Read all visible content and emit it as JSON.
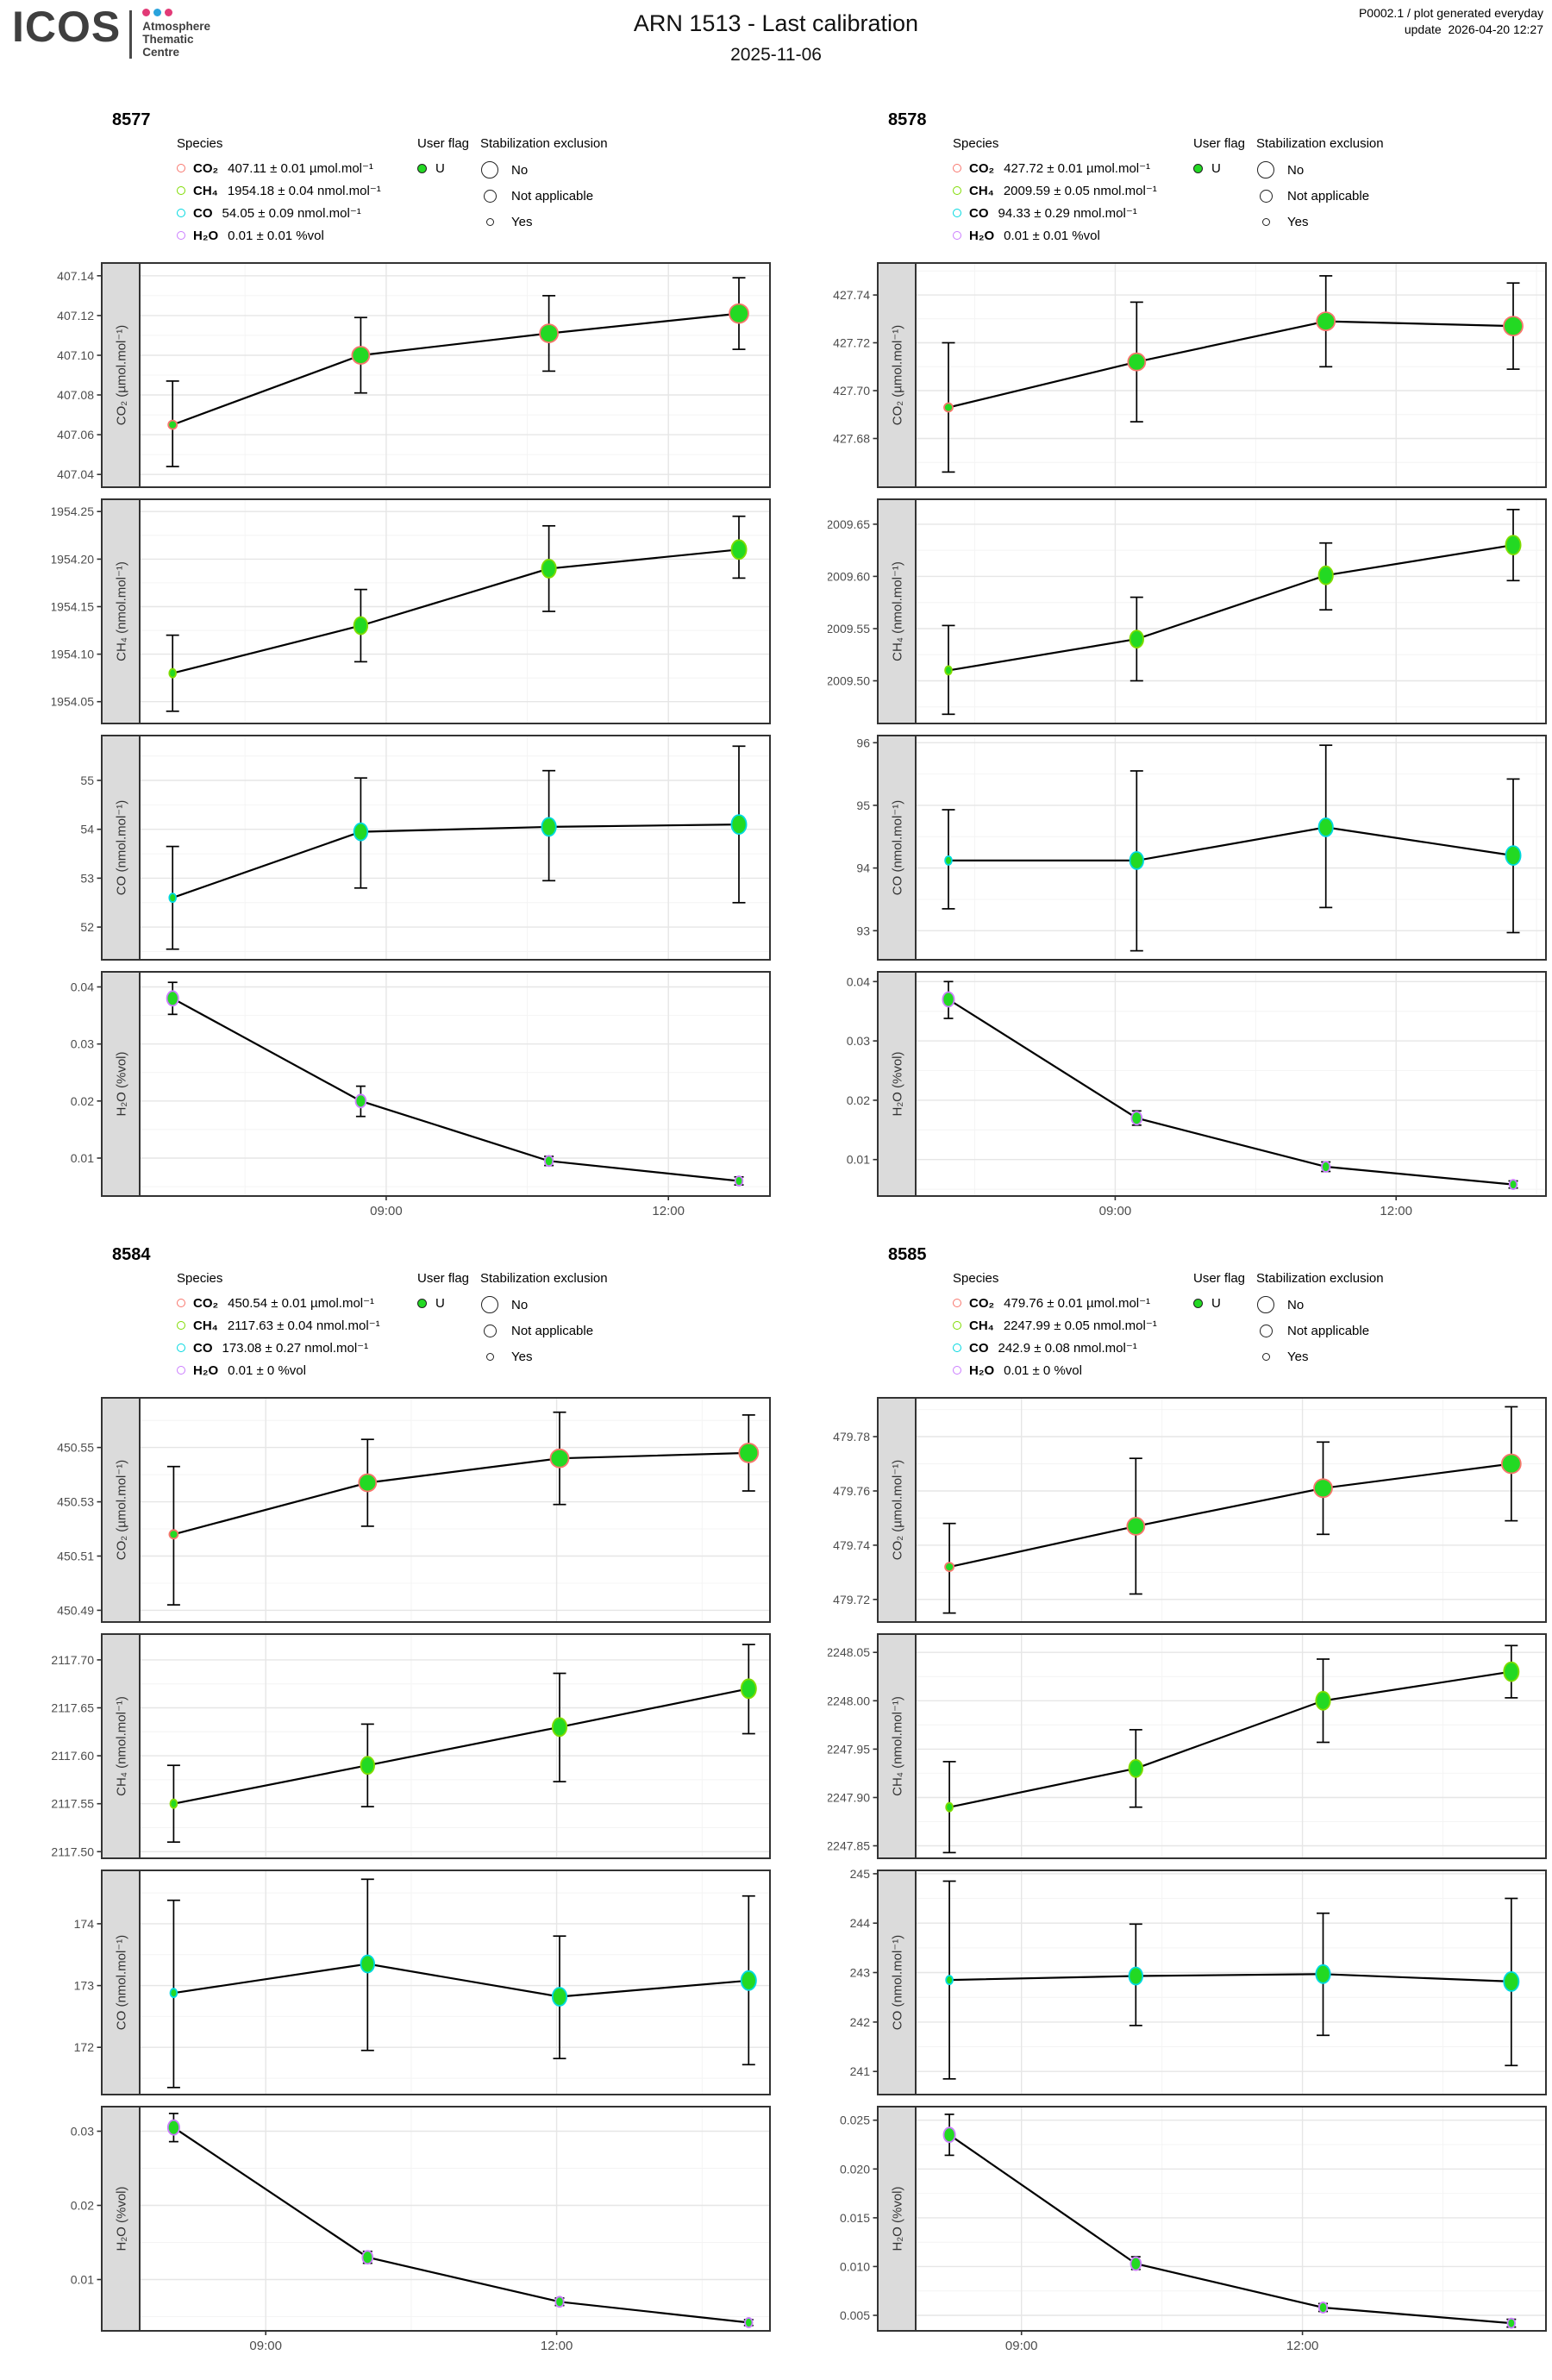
{
  "header": {
    "logo_text": "ICOS",
    "org_lines": [
      "Atmosphere",
      "Thematic",
      "Centre"
    ],
    "title": "ARN 1513 - Last calibration",
    "subtitle": "2025-11-06",
    "meta_line1": "P0002.1 / plot generated everyday",
    "meta_line2": "update  2026-04-20 12:27"
  },
  "legend": {
    "species_header": "Species",
    "user_flag_header": "User flag",
    "user_flag_label": "U",
    "stab_header": "Stabilization exclusion",
    "stab_items": [
      "No",
      "Not applicable",
      "Yes"
    ]
  },
  "species_colors": {
    "co2": "#F8766D",
    "ch4": "#7FDC00",
    "co": "#00D8E0",
    "h2o": "#CB7DFF"
  },
  "colors": {
    "marker_fill": "#23D923",
    "user_flag_dot": "#23D923",
    "strip_bg": "#DBDBDB",
    "panel_border": "#333333",
    "grid_major": "#E6E6E6",
    "grid_minor": "#F4F4F4",
    "tick_text": "#4D4D4D",
    "logo_dot_pink": "#E23A77",
    "logo_dot_blue": "#29A3DC"
  },
  "panels": [
    {
      "id": "8577",
      "species_items": [
        {
          "key": "co2",
          "formula": "CO₂",
          "value_text": "407.11 ± 0.01 µmol.mol⁻¹"
        },
        {
          "key": "ch4",
          "formula": "CH₄",
          "value_text": "1954.18 ± 0.04 nmol.mol⁻¹"
        },
        {
          "key": "co",
          "formula": "CO",
          "value_text": "54.05 ± 0.09 nmol.mol⁻¹"
        },
        {
          "key": "h2o",
          "formula": "H₂O",
          "value_text": "0.01 ± 0.01 %vol"
        }
      ]
    },
    {
      "id": "8578",
      "species_items": [
        {
          "key": "co2",
          "formula": "CO₂",
          "value_text": "427.72 ± 0.01 µmol.mol⁻¹"
        },
        {
          "key": "ch4",
          "formula": "CH₄",
          "value_text": "2009.59 ± 0.05 nmol.mol⁻¹"
        },
        {
          "key": "co",
          "formula": "CO",
          "value_text": "94.33 ± 0.29 nmol.mol⁻¹"
        },
        {
          "key": "h2o",
          "formula": "H₂O",
          "value_text": "0.01 ± 0.01 %vol"
        }
      ]
    },
    {
      "id": "8584",
      "species_items": [
        {
          "key": "co2",
          "formula": "CO₂",
          "value_text": "450.54 ± 0.01 µmol.mol⁻¹"
        },
        {
          "key": "ch4",
          "formula": "CH₄",
          "value_text": "2117.63 ± 0.04 nmol.mol⁻¹"
        },
        {
          "key": "co",
          "formula": "CO",
          "value_text": "173.08 ± 0.27 nmol.mol⁻¹"
        },
        {
          "key": "h2o",
          "formula": "H₂O",
          "value_text": "0.01 ± 0 %vol"
        }
      ]
    },
    {
      "id": "8585",
      "species_items": [
        {
          "key": "co2",
          "formula": "CO₂",
          "value_text": "479.76 ± 0.01 µmol.mol⁻¹"
        },
        {
          "key": "ch4",
          "formula": "CH₄",
          "value_text": "2247.99 ± 0.05 nmol.mol⁻¹"
        },
        {
          "key": "co",
          "formula": "CO",
          "value_text": "242.9 ± 0.08 nmol.mol⁻¹"
        },
        {
          "key": "h2o",
          "formula": "H₂O",
          "value_text": "0.01 ± 0 %vol"
        }
      ]
    }
  ],
  "chart_data": [
    {
      "type": "line",
      "panel": "8577",
      "key": "co2",
      "ylabel": "CO₂ (µmol.mol⁻¹)",
      "xlim": [
        6.38,
        13.08
      ],
      "x": [
        6.73,
        8.73,
        10.73,
        12.75
      ],
      "y": [
        407.065,
        407.1,
        407.111,
        407.121
      ],
      "err_lo": [
        407.044,
        407.081,
        407.092,
        407.103
      ],
      "err_hi": [
        407.087,
        407.119,
        407.13,
        407.139
      ],
      "ylim": [
        407.034,
        407.146
      ],
      "yticks": [
        407.04,
        407.06,
        407.08,
        407.1,
        407.12,
        407.14
      ],
      "ytick_labels": [
        "407.04",
        "407.06",
        "407.08",
        "407.10",
        "407.12",
        "407.14"
      ],
      "sizes": [
        10,
        20,
        21,
        22
      ],
      "ellipse": false,
      "xticks": [
        9,
        12
      ],
      "xtick_labels": [
        "09:00",
        "12:00"
      ],
      "x_minor": [
        7.5,
        10.5,
        13.5
      ]
    },
    {
      "type": "line",
      "panel": "8577",
      "key": "ch4",
      "ylabel": "CH₄ (nmol.mol⁻¹)",
      "xlim": [
        6.38,
        13.08
      ],
      "x": [
        6.73,
        8.73,
        10.73,
        12.75
      ],
      "y": [
        1954.08,
        1954.13,
        1954.19,
        1954.21
      ],
      "err_lo": [
        1954.04,
        1954.092,
        1954.145,
        1954.18
      ],
      "err_hi": [
        1954.12,
        1954.168,
        1954.235,
        1954.245
      ],
      "ylim": [
        1954.028,
        1954.262
      ],
      "yticks": [
        1954.05,
        1954.1,
        1954.15,
        1954.2,
        1954.25
      ],
      "ytick_labels": [
        "1954.05",
        "1954.10",
        "1954.15",
        "1954.20",
        "1954.25"
      ],
      "sizes": [
        10,
        20,
        21,
        22
      ],
      "ellipse": true,
      "xticks": [
        9,
        12
      ],
      "xtick_labels": [
        "09:00",
        "12:00"
      ],
      "x_minor": [
        7.5,
        10.5,
        13.5
      ]
    },
    {
      "type": "line",
      "panel": "8577",
      "key": "co",
      "ylabel": "CO (nmol.mol⁻¹)",
      "xlim": [
        6.38,
        13.08
      ],
      "x": [
        6.73,
        8.73,
        10.73,
        12.75
      ],
      "y": [
        52.6,
        53.95,
        54.05,
        54.1
      ],
      "err_lo": [
        51.55,
        52.8,
        52.95,
        52.5
      ],
      "err_hi": [
        53.65,
        55.05,
        55.2,
        55.7
      ],
      "ylim": [
        51.35,
        55.9
      ],
      "yticks": [
        52,
        53,
        54,
        55
      ],
      "ytick_labels": [
        "52",
        "53",
        "54",
        "55"
      ],
      "sizes": [
        10,
        20,
        21,
        22
      ],
      "ellipse": true,
      "xticks": [
        9,
        12
      ],
      "xtick_labels": [
        "09:00",
        "12:00"
      ],
      "x_minor": [
        7.5,
        10.5,
        13.5
      ]
    },
    {
      "type": "line",
      "panel": "8577",
      "key": "h2o",
      "ylabel": "H₂O (%vol)",
      "xlim": [
        6.38,
        13.08
      ],
      "x": [
        6.73,
        8.73,
        10.73,
        12.75
      ],
      "y": [
        0.038,
        0.02,
        0.0095,
        0.006
      ],
      "err_lo": [
        0.0352,
        0.0173,
        0.0087,
        0.0053
      ],
      "err_hi": [
        0.0408,
        0.0226,
        0.0103,
        0.0067
      ],
      "ylim": [
        0.0035,
        0.0425
      ],
      "yticks": [
        0.01,
        0.02,
        0.03,
        0.04
      ],
      "ytick_labels": [
        "0.01",
        "0.02",
        "0.03",
        "0.04"
      ],
      "sizes": [
        17,
        15,
        12,
        11
      ],
      "ellipse": true,
      "xticks": [
        9,
        12
      ],
      "xtick_labels": [
        "09:00",
        "12:00"
      ],
      "x_minor": [
        7.5,
        10.5,
        13.5
      ]
    },
    {
      "type": "line",
      "panel": "8578",
      "key": "co2",
      "ylabel": "CO₂ (µmol.mol⁻¹)",
      "xlim": [
        6.87,
        13.6
      ],
      "x": [
        7.22,
        9.23,
        11.25,
        13.25
      ],
      "y": [
        427.693,
        427.712,
        427.729,
        427.727
      ],
      "err_lo": [
        427.666,
        427.687,
        427.71,
        427.709
      ],
      "err_hi": [
        427.72,
        427.737,
        427.748,
        427.745
      ],
      "ylim": [
        427.66,
        427.753
      ],
      "yticks": [
        427.68,
        427.7,
        427.72,
        427.74
      ],
      "ytick_labels": [
        "427.68",
        "427.70",
        "427.72",
        "427.74"
      ],
      "sizes": [
        10,
        20,
        21,
        22
      ],
      "ellipse": false,
      "xticks": [
        9,
        12
      ],
      "xtick_labels": [
        "09:00",
        "12:00"
      ],
      "x_minor": [
        7.5,
        10.5,
        13.5
      ]
    },
    {
      "type": "line",
      "panel": "8578",
      "key": "ch4",
      "ylabel": "CH₄ (nmol.mol⁻¹)",
      "xlim": [
        6.87,
        13.6
      ],
      "x": [
        7.22,
        9.23,
        11.25,
        13.25
      ],
      "y": [
        2009.51,
        2009.54,
        2009.601,
        2009.63
      ],
      "err_lo": [
        2009.468,
        2009.5,
        2009.568,
        2009.596
      ],
      "err_hi": [
        2009.553,
        2009.58,
        2009.632,
        2009.664
      ],
      "ylim": [
        2009.46,
        2009.673
      ],
      "yticks": [
        2009.5,
        2009.55,
        2009.6,
        2009.65
      ],
      "ytick_labels": [
        "2009.50",
        "2009.55",
        "2009.60",
        "2009.65"
      ],
      "sizes": [
        10,
        20,
        21,
        22
      ],
      "ellipse": true,
      "xticks": [
        9,
        12
      ],
      "xtick_labels": [
        "09:00",
        "12:00"
      ],
      "x_minor": [
        7.5,
        10.5,
        13.5
      ]
    },
    {
      "type": "line",
      "panel": "8578",
      "key": "co",
      "ylabel": "CO (nmol.mol⁻¹)",
      "xlim": [
        6.87,
        13.6
      ],
      "x": [
        7.22,
        9.23,
        11.25,
        13.25
      ],
      "y": [
        94.12,
        94.12,
        94.65,
        94.2
      ],
      "err_lo": [
        93.35,
        92.68,
        93.37,
        92.97
      ],
      "err_hi": [
        94.93,
        95.55,
        95.96,
        95.42
      ],
      "ylim": [
        92.55,
        96.1
      ],
      "yticks": [
        93,
        94,
        95,
        96
      ],
      "ytick_labels": [
        "93",
        "94",
        "95",
        "96"
      ],
      "sizes": [
        10,
        20,
        21,
        22
      ],
      "ellipse": true,
      "xticks": [
        9,
        12
      ],
      "xtick_labels": [
        "09:00",
        "12:00"
      ],
      "x_minor": [
        7.5,
        10.5,
        13.5
      ]
    },
    {
      "type": "line",
      "panel": "8578",
      "key": "h2o",
      "ylabel": "H₂O (%vol)",
      "xlim": [
        6.87,
        13.6
      ],
      "x": [
        7.22,
        9.23,
        11.25,
        13.25
      ],
      "y": [
        0.037,
        0.017,
        0.0088,
        0.0058
      ],
      "err_lo": [
        0.0338,
        0.0158,
        0.008,
        0.0052
      ],
      "err_hi": [
        0.04,
        0.0182,
        0.0096,
        0.0064
      ],
      "ylim": [
        0.004,
        0.0415
      ],
      "yticks": [
        0.01,
        0.02,
        0.03,
        0.04
      ],
      "ytick_labels": [
        "0.01",
        "0.02",
        "0.03",
        "0.04"
      ],
      "sizes": [
        17,
        15,
        12,
        11
      ],
      "ellipse": true,
      "xticks": [
        9,
        12
      ],
      "xtick_labels": [
        "09:00",
        "12:00"
      ],
      "x_minor": [
        7.5,
        10.5,
        13.5
      ]
    },
    {
      "type": "line",
      "panel": "8584",
      "key": "co2",
      "ylabel": "CO₂ (µmol.mol⁻¹)",
      "xlim": [
        7.7,
        14.2
      ],
      "x": [
        8.05,
        10.05,
        12.03,
        13.98
      ],
      "y": [
        450.518,
        450.537,
        450.546,
        450.548
      ],
      "err_lo": [
        450.492,
        450.521,
        450.529,
        450.534
      ],
      "err_hi": [
        450.543,
        450.553,
        450.563,
        450.562
      ],
      "ylim": [
        450.486,
        450.568
      ],
      "yticks": [
        450.49,
        450.51,
        450.53,
        450.55
      ],
      "ytick_labels": [
        "450.49",
        "450.51",
        "450.53",
        "450.55"
      ],
      "sizes": [
        10,
        20,
        21,
        22
      ],
      "ellipse": false,
      "xticks": [
        9,
        12
      ],
      "xtick_labels": [
        "09:00",
        "12:00"
      ],
      "x_minor": [
        7.5,
        10.5,
        13.5
      ]
    },
    {
      "type": "line",
      "panel": "8584",
      "key": "ch4",
      "ylabel": "CH₄ (nmol.mol⁻¹)",
      "xlim": [
        7.7,
        14.2
      ],
      "x": [
        8.05,
        10.05,
        12.03,
        13.98
      ],
      "y": [
        2117.55,
        2117.59,
        2117.63,
        2117.67
      ],
      "err_lo": [
        2117.51,
        2117.547,
        2117.573,
        2117.623
      ],
      "err_hi": [
        2117.59,
        2117.633,
        2117.686,
        2117.716
      ],
      "ylim": [
        2117.494,
        2117.726
      ],
      "yticks": [
        2117.5,
        2117.55,
        2117.6,
        2117.65,
        2117.7
      ],
      "ytick_labels": [
        "2117.50",
        "2117.55",
        "2117.60",
        "2117.65",
        "2117.70"
      ],
      "sizes": [
        10,
        20,
        21,
        22
      ],
      "ellipse": true,
      "xticks": [
        9,
        12
      ],
      "xtick_labels": [
        "09:00",
        "12:00"
      ],
      "x_minor": [
        7.5,
        10.5,
        13.5
      ]
    },
    {
      "type": "line",
      "panel": "8584",
      "key": "co",
      "ylabel": "CO (nmol.mol⁻¹)",
      "xlim": [
        7.7,
        14.2
      ],
      "x": [
        8.05,
        10.05,
        12.03,
        13.98
      ],
      "y": [
        172.88,
        173.35,
        172.82,
        173.08
      ],
      "err_lo": [
        171.35,
        171.95,
        171.82,
        171.72
      ],
      "err_hi": [
        174.38,
        174.72,
        173.8,
        174.45
      ],
      "ylim": [
        171.25,
        174.85
      ],
      "yticks": [
        172,
        173,
        174
      ],
      "ytick_labels": [
        "172",
        "173",
        "174"
      ],
      "sizes": [
        10,
        20,
        21,
        22
      ],
      "ellipse": true,
      "xticks": [
        9,
        12
      ],
      "xtick_labels": [
        "09:00",
        "12:00"
      ],
      "x_minor": [
        7.5,
        10.5,
        13.5
      ]
    },
    {
      "type": "line",
      "panel": "8584",
      "key": "h2o",
      "ylabel": "H₂O (%vol)",
      "xlim": [
        7.7,
        14.2
      ],
      "x": [
        8.05,
        10.05,
        12.03,
        13.98
      ],
      "y": [
        0.0305,
        0.013,
        0.007,
        0.0042
      ],
      "err_lo": [
        0.0286,
        0.0122,
        0.0065,
        0.0038
      ],
      "err_hi": [
        0.0324,
        0.0138,
        0.0075,
        0.0046
      ],
      "ylim": [
        0.0032,
        0.0332
      ],
      "yticks": [
        0.01,
        0.02,
        0.03
      ],
      "ytick_labels": [
        "0.01",
        "0.02",
        "0.03"
      ],
      "sizes": [
        17,
        15,
        12,
        11
      ],
      "ellipse": true,
      "xticks": [
        9,
        12
      ],
      "xtick_labels": [
        "09:00",
        "12:00"
      ],
      "x_minor": [
        7.5,
        10.5,
        13.5
      ]
    },
    {
      "type": "line",
      "panel": "8585",
      "key": "co2",
      "ylabel": "CO₂ (µmol.mol⁻¹)",
      "xlim": [
        7.87,
        14.6
      ],
      "x": [
        8.23,
        10.22,
        12.22,
        14.23
      ],
      "y": [
        479.732,
        479.747,
        479.761,
        479.77
      ],
      "err_lo": [
        479.715,
        479.722,
        479.744,
        479.749
      ],
      "err_hi": [
        479.748,
        479.772,
        479.778,
        479.791
      ],
      "ylim": [
        479.712,
        479.794
      ],
      "yticks": [
        479.72,
        479.74,
        479.76,
        479.78
      ],
      "ytick_labels": [
        "479.72",
        "479.74",
        "479.76",
        "479.78"
      ],
      "sizes": [
        10,
        20,
        21,
        22
      ],
      "ellipse": false,
      "xticks": [
        9,
        12
      ],
      "xtick_labels": [
        "09:00",
        "12:00"
      ],
      "x_minor": [
        7.5,
        10.5,
        13.5
      ]
    },
    {
      "type": "line",
      "panel": "8585",
      "key": "ch4",
      "ylabel": "CH₄ (nmol.mol⁻¹)",
      "xlim": [
        7.87,
        14.6
      ],
      "x": [
        8.23,
        10.22,
        12.22,
        14.23
      ],
      "y": [
        2247.89,
        2247.93,
        2248.0,
        2248.03
      ],
      "err_lo": [
        2247.843,
        2247.89,
        2247.957,
        2248.003
      ],
      "err_hi": [
        2247.937,
        2247.97,
        2248.043,
        2248.057
      ],
      "ylim": [
        2247.838,
        2248.068
      ],
      "yticks": [
        2247.85,
        2247.9,
        2247.95,
        2248.0,
        2248.05
      ],
      "ytick_labels": [
        "2247.85",
        "2247.90",
        "2247.95",
        "2248.00",
        "2248.05"
      ],
      "sizes": [
        10,
        20,
        21,
        22
      ],
      "ellipse": true,
      "xticks": [
        9,
        12
      ],
      "xtick_labels": [
        "09:00",
        "12:00"
      ],
      "x_minor": [
        7.5,
        10.5,
        13.5
      ]
    },
    {
      "type": "line",
      "panel": "8585",
      "key": "co",
      "ylabel": "CO (nmol.mol⁻¹)",
      "xlim": [
        7.87,
        14.6
      ],
      "x": [
        8.23,
        10.22,
        12.22,
        14.23
      ],
      "y": [
        242.85,
        242.93,
        242.97,
        242.82
      ],
      "err_lo": [
        240.85,
        241.93,
        241.73,
        241.12
      ],
      "err_hi": [
        244.85,
        243.98,
        244.2,
        244.5
      ],
      "ylim": [
        240.55,
        245.05
      ],
      "yticks": [
        241,
        242,
        243,
        244,
        245
      ],
      "ytick_labels": [
        "241",
        "242",
        "243",
        "244",
        "245"
      ],
      "sizes": [
        10,
        20,
        21,
        22
      ],
      "ellipse": true,
      "xticks": [
        9,
        12
      ],
      "xtick_labels": [
        "09:00",
        "12:00"
      ],
      "x_minor": [
        7.5,
        10.5,
        13.5
      ]
    },
    {
      "type": "line",
      "panel": "8585",
      "key": "h2o",
      "ylabel": "H₂O (%vol)",
      "xlim": [
        7.87,
        14.6
      ],
      "x": [
        8.23,
        10.22,
        12.22,
        14.23
      ],
      "y": [
        0.0235,
        0.0103,
        0.0058,
        0.0042
      ],
      "err_lo": [
        0.0214,
        0.0097,
        0.0054,
        0.0038
      ],
      "err_hi": [
        0.0256,
        0.011,
        0.0062,
        0.0046
      ],
      "ylim": [
        0.0035,
        0.0263
      ],
      "yticks": [
        0.005,
        0.01,
        0.015,
        0.02,
        0.025
      ],
      "ytick_labels": [
        "0.005",
        "0.010",
        "0.015",
        "0.020",
        "0.025"
      ],
      "sizes": [
        17,
        15,
        12,
        11
      ],
      "ellipse": true,
      "xticks": [
        9,
        12
      ],
      "xtick_labels": [
        "09:00",
        "12:00"
      ],
      "x_minor": [
        7.5,
        10.5,
        13.5
      ]
    }
  ]
}
